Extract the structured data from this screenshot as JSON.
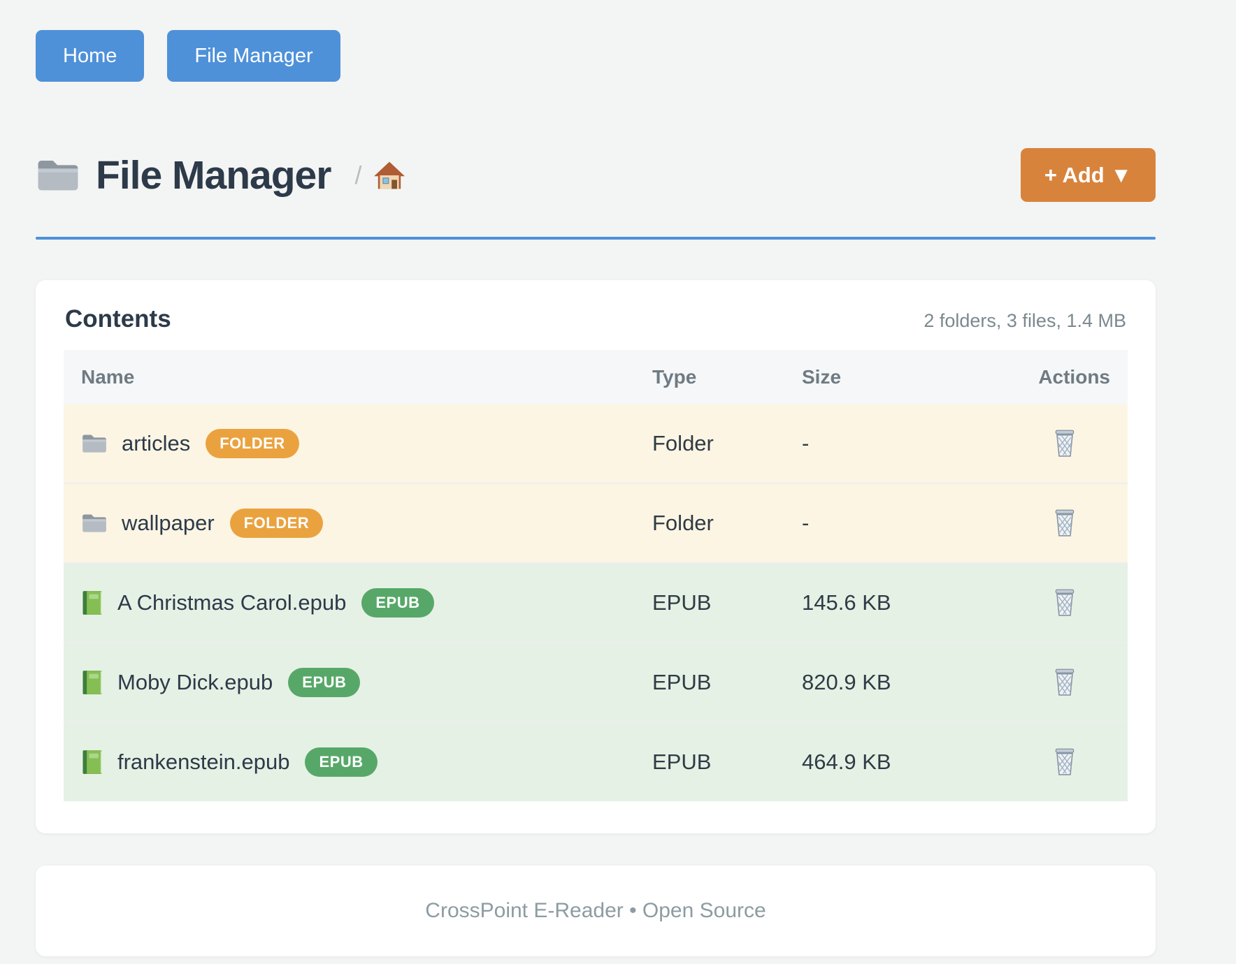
{
  "nav": {
    "home": "Home",
    "file_manager": "File Manager"
  },
  "header": {
    "title": "File Manager",
    "title_icon": "folder-icon",
    "breadcrumb_separator": "/",
    "breadcrumb_home_icon": "home-icon",
    "add_button": "+ Add ▼"
  },
  "contents": {
    "heading": "Contents",
    "summary": "2 folders, 3 files, 1.4 MB",
    "columns": {
      "name": "Name",
      "type": "Type",
      "size": "Size",
      "actions": "Actions"
    },
    "rows": [
      {
        "name": "articles",
        "badge": "FOLDER",
        "type": "Folder",
        "size": "-",
        "kind": "folder",
        "icon": "folder-icon",
        "action_icon": "trash-icon"
      },
      {
        "name": "wallpaper",
        "badge": "FOLDER",
        "type": "Folder",
        "size": "-",
        "kind": "folder",
        "icon": "folder-icon",
        "action_icon": "trash-icon"
      },
      {
        "name": "A Christmas Carol.epub",
        "badge": "EPUB",
        "type": "EPUB",
        "size": "145.6 KB",
        "kind": "epub",
        "icon": "book-icon",
        "action_icon": "trash-icon"
      },
      {
        "name": "Moby Dick.epub",
        "badge": "EPUB",
        "type": "EPUB",
        "size": "820.9 KB",
        "kind": "epub",
        "icon": "book-icon",
        "action_icon": "trash-icon"
      },
      {
        "name": "frankenstein.epub",
        "badge": "EPUB",
        "type": "EPUB",
        "size": "464.9 KB",
        "kind": "epub",
        "icon": "book-icon",
        "action_icon": "trash-icon"
      }
    ]
  },
  "footer": {
    "text": "CrossPoint E-Reader • Open Source"
  },
  "colors": {
    "accent_blue": "#4e91d9",
    "accent_orange": "#d8833c",
    "badge_folder": "#eaa23f",
    "badge_epub": "#57a868",
    "row_folder_bg": "#fcf5e3",
    "row_epub_bg": "#e6f1e5"
  }
}
